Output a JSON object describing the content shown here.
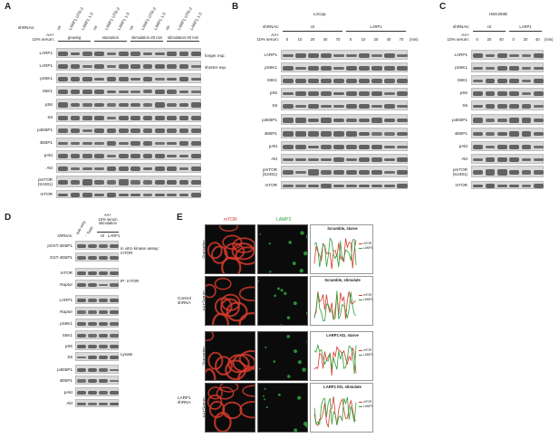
{
  "panelA": {
    "letter": "A",
    "shrnas_label": "shRNAs:",
    "aa_label": "AA+\n10% serum:",
    "lane_names": [
      "ctr",
      "LARP1 UTR-2",
      "LARP1 1-3",
      "ctr",
      "LARP1 UTR-2",
      "LARP1 1-3",
      "ctr",
      "LARP1 UTR-2",
      "LARP1 1-3",
      "ctr",
      "LARP1 UTR-2",
      "LARP1 1-3"
    ],
    "conditions": [
      "growing",
      "starvation",
      "stimulation-20 min",
      "stimulation-40 min"
    ],
    "rows": [
      "LARP1",
      "LARP1",
      "pS6K1",
      "S6K1",
      "pS6",
      "S6",
      "p4EBP1",
      "4EBP1",
      "pAkt",
      "Akt",
      "pmTOR\n(S2481)",
      "mTOR"
    ],
    "right_notes": [
      "longer exp.",
      "shorter exp."
    ]
  },
  "panelB": {
    "letter": "B",
    "cell_line": "LnCap",
    "shrnas_label": "shRNAs:",
    "aa_label": "AA+\n10% serum:",
    "groups": [
      "ctr",
      "LARP1"
    ],
    "timepoints": [
      "0",
      "10",
      "20",
      "40",
      "70",
      "0",
      "10",
      "20",
      "40",
      "70"
    ],
    "unit": "(min)",
    "rows": [
      "LARP1",
      "pS6K1",
      "S6K1",
      "pS6",
      "S6",
      "p4EBP1",
      "4EBP1",
      "pAkt",
      "Akt",
      "pmTOR\n(S2481)",
      "mTOR"
    ]
  },
  "panelC": {
    "letter": "C",
    "cell_line": "HEK293E",
    "shrnas_label": "shRNAs:",
    "aa_label": "AA+\n10% serum:",
    "groups": [
      "ctr",
      "LARP1"
    ],
    "timepoints": [
      "0",
      "20",
      "40",
      "0",
      "20",
      "40"
    ],
    "unit": "(min)",
    "rows": [
      "LARP1",
      "pS6K1",
      "S6K1",
      "pS6",
      "S6",
      "p4EBP1",
      "4EBP1",
      "pAkt",
      "Akt",
      "pmTOR\n(S2481)",
      "mTOR"
    ]
  },
  "panelD": {
    "letter": "D",
    "col_headers": [
      "sub-very",
      "Torin",
      "AA+\n10% serum\nstimulation"
    ],
    "shrnas_label": "shRNAs:",
    "shrna_values": [
      "-",
      "ctr",
      "LARP1"
    ],
    "rows": [
      "pGST-4EBP1",
      "GST-4EBP1",
      "mTOR",
      "Raptor",
      "LARP1",
      "Raptor",
      "pS6K1",
      "S6K1",
      "pS6",
      "S6",
      "p4EBP1",
      "4EBP1",
      "pAkt",
      "Akt"
    ],
    "section_notes": [
      "in vitro kinase assay:\nmTOR",
      "IP: mTOR",
      "Lysate"
    ]
  },
  "panelE": {
    "letter": "E",
    "channel_labels": [
      "mTOR",
      "LAMP2"
    ],
    "channel_colors": [
      "#d43b2b",
      "#2e9e3a"
    ],
    "group_labels": [
      "Control\nshRNA",
      "LARP1\nshRNA"
    ],
    "condition_labels": [
      "Starvation",
      "AA+Serum",
      "Starvation",
      "AA+Serum"
    ],
    "plot_titles": [
      "Scramble, starve",
      "Scramble, stimulate",
      "LARP1 KD, starve",
      "LARP1 KD, stimulate"
    ],
    "legend": [
      "mTOR",
      "LAMP2"
    ]
  }
}
